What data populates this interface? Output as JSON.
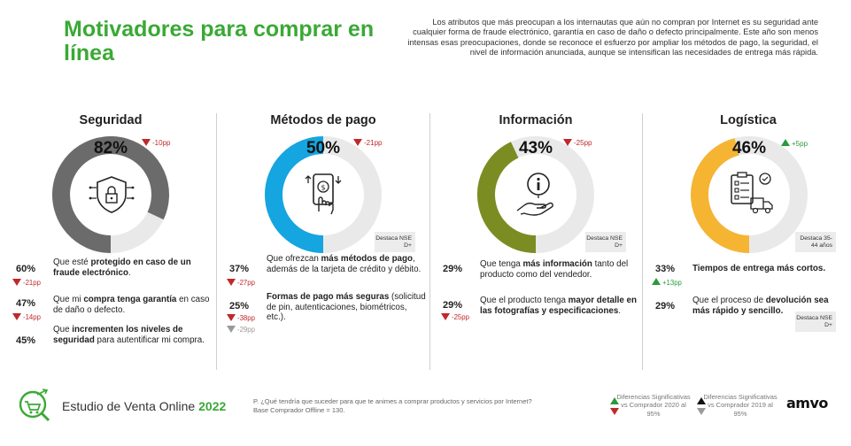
{
  "header": {
    "title": "Motivadores para comprar en línea",
    "intro": "Los atributos que más preocupan a los internautas que aún no compran por Internet es su seguridad ante cualquier forma de fraude electrónico, garantía en caso de daño o defecto principalmente. Este año son menos intensas esas preocupaciones, donde se reconoce el esfuerzo por ampliar los métodos de pago, la seguridad, el nivel de información anunciada, aunque se intensifican las necesidades de entrega más rápida."
  },
  "colors": {
    "brand_green": "#3aa935",
    "seguridad": "#6b6b6b",
    "metodos": "#15a5e0",
    "informacion": "#7b8d22",
    "logistica": "#f5b533",
    "track": "#e9e9e9",
    "down": "#c0282b",
    "up": "#2a9a3b"
  },
  "columns": [
    {
      "key": "seguridad",
      "title": "Seguridad",
      "percent": "82%",
      "value": 82,
      "change": "-10pp",
      "direction": "down",
      "icon": "shield-lock-icon",
      "destaca": null,
      "items": [
        {
          "pct": "60%",
          "change": "-21pp",
          "dir": "down",
          "text_html": "Que esté <b>protegido en caso de un fraude electrónico</b>."
        },
        {
          "pct": "47%",
          "change": "-14pp",
          "dir": "down",
          "text_html": "Que mi <b>compra tenga garantía</b> en caso de daño o defecto."
        },
        {
          "pct": "45%",
          "change": "",
          "dir": "",
          "text_html": "Que <b>incrementen los niveles de seguridad</b> para autentificar mi compra."
        }
      ]
    },
    {
      "key": "metodos",
      "title": "Métodos de pago",
      "percent": "50%",
      "value": 50,
      "change": "-21pp",
      "direction": "down",
      "icon": "mobile-payment-icon",
      "destaca": "Destaca NSE D+",
      "items": [
        {
          "pct": "37%",
          "change": "-27pp",
          "dir": "down",
          "change2": "",
          "text_html": "Que ofrezcan <b>más métodos de pago</b>, además de la tarjeta de crédito y débito."
        },
        {
          "pct": "25%",
          "change": "-38pp",
          "dir": "down",
          "change2": "-29pp",
          "text_html": "<b>Formas de pago más seguras</b> (solicitud de pin, autenticaciones, biométricos, etc.)."
        }
      ]
    },
    {
      "key": "informacion",
      "title": "Información",
      "percent": "43%",
      "value": 43,
      "change": "-25pp",
      "direction": "down",
      "icon": "info-hand-icon",
      "destaca": "Destaca NSE D+",
      "items": [
        {
          "pct": "29%",
          "change": "",
          "dir": "",
          "text_html": "Que tenga <b>más información</b> tanto del producto como del vendedor."
        },
        {
          "pct": "29%",
          "change": "-25pp",
          "dir": "down",
          "text_html": "Que el producto tenga <b>mayor detalle en las fotografías y especificaciones</b>."
        }
      ]
    },
    {
      "key": "logistica",
      "title": "Logística",
      "percent": "46%",
      "value": 46,
      "change": "+5pp",
      "direction": "up",
      "icon": "delivery-checklist-icon",
      "destaca": "Destaca 35-44 años",
      "destaca2": "Destaca NSE D+",
      "items": [
        {
          "pct": "33%",
          "change": "+13pp",
          "dir": "up",
          "text_html": "<b>Tiempos de entrega más cortos.</b>"
        },
        {
          "pct": "29%",
          "change": "",
          "dir": "",
          "text_html": "Que el proceso de <b>devolución sea más rápido y sencillo.</b>"
        }
      ]
    }
  ],
  "footer": {
    "study_label": "Estudio de Venta Online",
    "study_year": "2022",
    "question": "P. ¿Qué tendría que suceder para que te animes a comprar productos y servicios por Internet?",
    "base": "Base Comprador Offline = 130.",
    "legend_2020": "Diferencias Significativas vs Comprador 2020 al 95%",
    "legend_2019": "Diferencias Significativas vs Comprador 2019 al 95%",
    "brand": "amvo"
  }
}
